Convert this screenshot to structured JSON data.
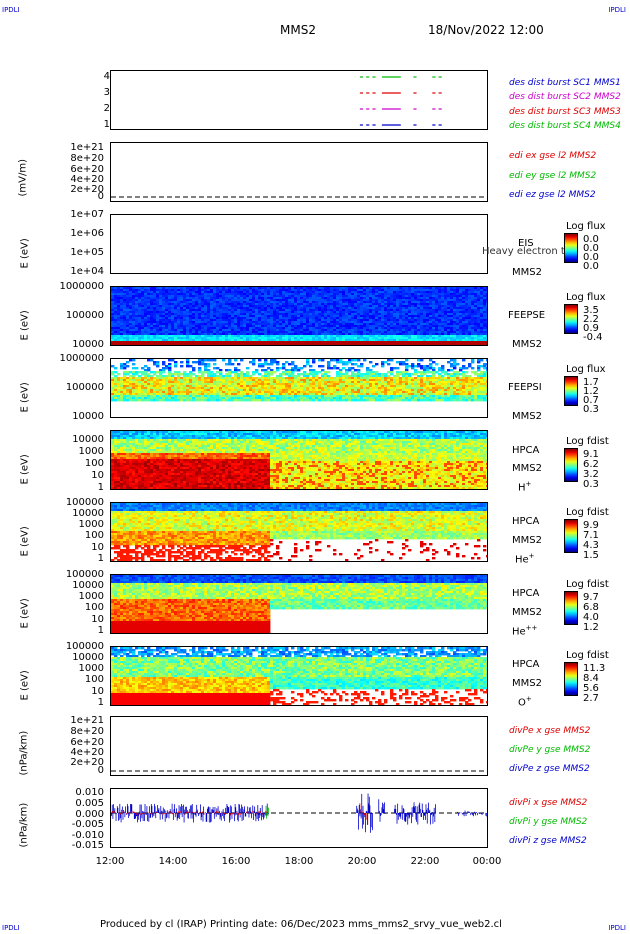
{
  "corner_marks": {
    "tl": "IPDLI",
    "tr": "IPDLI",
    "bl": "IPDLI",
    "br": "IPDLI"
  },
  "header": {
    "spacecraft": "MMS2",
    "datetime": "18/Nov/2022 12:00"
  },
  "footer": {
    "text": "Produced by cl (IRAP)   Printing date: 06/Dec/2023   mms_mms2_srvy_vue_web2.cl"
  },
  "colors": {
    "sc1": "#0000cc",
    "sc2": "#cc00cc",
    "sc3": "#dd0000",
    "sc4": "#00bb00",
    "x": "#dd0000",
    "y": "#00bb00",
    "z": "#0000cc"
  },
  "chart_data": [
    {
      "type": "scatter",
      "panel": "burst",
      "yticks": [
        "4",
        "3",
        "2",
        "1"
      ],
      "legend": [
        "des dist burst SC1 MMS1",
        "des dist burst SC2 MMS2",
        "des dist burst SC3 MMS3",
        "des dist burst SC4 MMS4"
      ],
      "segments_hours": [
        [
          19.9,
          20.0
        ],
        [
          20.1,
          20.2
        ],
        [
          20.3,
          20.4
        ],
        [
          20.6,
          21.2
        ],
        [
          21.6,
          21.7
        ],
        [
          22.2,
          22.3
        ],
        [
          22.4,
          22.5
        ]
      ]
    },
    {
      "type": "line",
      "panel": "edi",
      "ylabel": "(mV/m)",
      "yticks": [
        "1e+21",
        "8e+20",
        "6e+20",
        "4e+20",
        "2e+20",
        "0"
      ],
      "legend": [
        "edi ex gse l2 MMS2",
        "edi ey gse l2 MMS2",
        "edi ez gse l2 MMS2"
      ]
    },
    {
      "type": "heatmap",
      "panel": "eis",
      "ylabel": "E (eV)",
      "yticks": [
        "1e+07",
        "1e+06",
        "1e+05",
        "1e+04"
      ],
      "instrument": [
        "EIS",
        "MMS2"
      ],
      "overlay": "Heavy electron to",
      "colorbar": {
        "title": "Log flux",
        "ticks": [
          "0.0",
          "0.0",
          "0.0",
          "0.0"
        ]
      }
    },
    {
      "type": "heatmap",
      "panel": "feepse",
      "ylabel": "E (eV)",
      "yticks": [
        "1000000",
        "100000",
        "10000"
      ],
      "instrument": [
        "FEEPSE",
        "MMS2"
      ],
      "colorbar": {
        "title": "Log flux",
        "ticks": [
          "3.5",
          "2.2",
          "0.9",
          "-0.4"
        ]
      }
    },
    {
      "type": "heatmap",
      "panel": "feepsi",
      "ylabel": "E (eV)",
      "yticks": [
        "1000000",
        "100000",
        "10000"
      ],
      "instrument": [
        "FEEPSI",
        "MMS2"
      ],
      "colorbar": {
        "title": "Log flux",
        "ticks": [
          "1.7",
          "1.2",
          "0.7",
          "0.3"
        ]
      }
    },
    {
      "type": "heatmap",
      "panel": "hpca_h",
      "ylabel": "E (eV)",
      "yticks": [
        "10000",
        "1000",
        "100",
        "10",
        "1"
      ],
      "instrument": [
        "HPCA",
        "MMS2"
      ],
      "species": {
        "base": "H",
        "sup": "+"
      },
      "colorbar": {
        "title": "Log fdist",
        "ticks": [
          "9.1",
          "6.2",
          "3.2",
          "0.3"
        ]
      }
    },
    {
      "type": "heatmap",
      "panel": "hpca_he1",
      "ylabel": "E (eV)",
      "yticks": [
        "100000",
        "10000",
        "1000",
        "100",
        "10",
        "1"
      ],
      "instrument": [
        "HPCA",
        "MMS2"
      ],
      "species": {
        "base": "He",
        "sup": "+"
      },
      "colorbar": {
        "title": "Log fdist",
        "ticks": [
          "9.9",
          "7.1",
          "4.3",
          "1.5"
        ]
      }
    },
    {
      "type": "heatmap",
      "panel": "hpca_he2",
      "ylabel": "E (eV)",
      "yticks": [
        "100000",
        "10000",
        "1000",
        "100",
        "10",
        "1"
      ],
      "instrument": [
        "HPCA",
        "MMS2"
      ],
      "species": {
        "base": "He",
        "sup": "++"
      },
      "colorbar": {
        "title": "Log fdist",
        "ticks": [
          "9.7",
          "6.8",
          "4.0",
          "1.2"
        ]
      }
    },
    {
      "type": "heatmap",
      "panel": "hpca_o",
      "ylabel": "E (eV)",
      "yticks": [
        "100000",
        "10000",
        "1000",
        "100",
        "10",
        "1"
      ],
      "instrument": [
        "HPCA",
        "MMS2"
      ],
      "species": {
        "base": "O",
        "sup": "+"
      },
      "colorbar": {
        "title": "Log fdist",
        "ticks": [
          "11.3",
          "8.4",
          "5.6",
          "2.7"
        ]
      }
    },
    {
      "type": "line",
      "panel": "divpe",
      "ylabel": "(nPa/km)",
      "yticks": [
        "1e+21",
        "8e+20",
        "6e+20",
        "4e+20",
        "2e+20",
        "0"
      ],
      "legend": [
        "divPe x gse MMS2",
        "divPe y gse MMS2",
        "divPe z gse MMS2"
      ]
    },
    {
      "type": "line",
      "panel": "divpi",
      "ylabel": "(nPa/km)",
      "yticks": [
        "0.010",
        "0.005",
        "0.000",
        "-0.005",
        "-0.010",
        "-0.015"
      ],
      "ylim": [
        -0.015,
        0.01
      ],
      "legend": [
        "divPi x gse MMS2",
        "divPi y gse MMS2",
        "divPi z gse MMS2"
      ]
    }
  ],
  "xaxis": {
    "ticks": [
      "12:00",
      "14:00",
      "16:00",
      "18:00",
      "20:00",
      "22:00",
      "00:00"
    ]
  }
}
